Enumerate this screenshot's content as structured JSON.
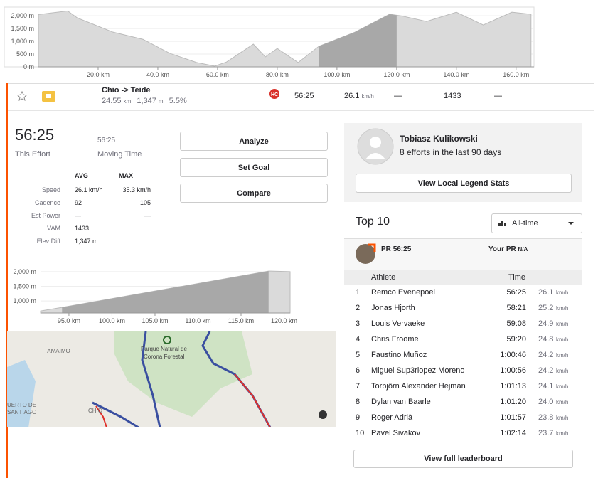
{
  "overview_chart": {
    "type": "area",
    "x": [
      0,
      9.8,
      13,
      25,
      35,
      44,
      53,
      59,
      63,
      72,
      76,
      80,
      87,
      94,
      106,
      117.6,
      121.5,
      130,
      140,
      149,
      158.6,
      165
    ],
    "values": [
      2050,
      2190,
      1920,
      1360,
      1080,
      530,
      170,
      30,
      190,
      890,
      390,
      720,
      170,
      810,
      1360,
      2060,
      2000,
      1780,
      2140,
      1640,
      2140,
      2060
    ],
    "xlim": [
      0,
      166
    ],
    "ylim": [
      0,
      2200
    ],
    "yticks": [
      {
        "value": 0,
        "label": "0 m"
      },
      {
        "value": 500,
        "label": "500 m"
      },
      {
        "value": 1000,
        "label": "1,000 m"
      },
      {
        "value": 1500,
        "label": "1,500 m"
      },
      {
        "value": 2000,
        "label": "2,000 m"
      }
    ],
    "xticks": [
      {
        "value": 20,
        "label": "20.0 km"
      },
      {
        "value": 40,
        "label": "40.0 km"
      },
      {
        "value": 60,
        "label": "60.0 km"
      },
      {
        "value": 80,
        "label": "80.0 km"
      },
      {
        "value": 100,
        "label": "100.0 km"
      },
      {
        "value": 120,
        "label": "120.0 km"
      },
      {
        "value": 140,
        "label": "140.0 km"
      },
      {
        "value": 160,
        "label": "160.0 km"
      }
    ],
    "highlight": [
      94,
      120
    ],
    "color": "#dadada",
    "highlight_color": "#a8a8a8"
  },
  "segment": {
    "name": "Chio -> Teide",
    "distance": "24.55",
    "distance_unit": "km",
    "elevation": "1,347",
    "elevation_unit": "m",
    "grade": "5.5%",
    "category": "HC",
    "time": "56:25",
    "speed": "26.1",
    "speed_unit": "km/h",
    "power": "—",
    "vam": "1433",
    "heart_rate": "—"
  },
  "effort": {
    "time": "56:25",
    "time_label": "This Effort",
    "moving_time": "56:25",
    "moving_label": "Moving Time",
    "headers": [
      "AVG",
      "MAX"
    ],
    "rows": [
      {
        "label": "Speed",
        "avg": "26.1 km/h",
        "max": "35.3 km/h"
      },
      {
        "label": "Cadence",
        "avg": "92",
        "max": "105"
      },
      {
        "label": "Est Power",
        "avg": "—",
        "max": "—"
      },
      {
        "label": "VAM",
        "avg": "1433"
      },
      {
        "label": "Elev Diff",
        "avg": "1,347 m"
      }
    ]
  },
  "buttons": [
    "Analyze",
    "Set Goal",
    "Compare"
  ],
  "segment_chart": {
    "type": "area",
    "x": [
      91.7,
      94.2,
      118.2,
      120.7
    ],
    "values": [
      660,
      780,
      2020,
      2000
    ],
    "xlim": [
      91.7,
      120.7
    ],
    "ylim": [
      590,
      2240
    ],
    "yticks": [
      {
        "value": 1000,
        "label": "1,000 m"
      },
      {
        "value": 1500,
        "label": "1,500 m"
      },
      {
        "value": 2000,
        "label": "2,000 m"
      }
    ],
    "xticks": [
      {
        "value": 95,
        "label": "95.0 km"
      },
      {
        "value": 100,
        "label": "100.0 km"
      },
      {
        "value": 105,
        "label": "105.0 km"
      },
      {
        "value": 110,
        "label": "110.0 km"
      },
      {
        "value": 115,
        "label": "115.0 km"
      },
      {
        "value": 120,
        "label": "120.0 km"
      }
    ],
    "highlight": [
      94.2,
      118.2
    ],
    "color": "#dadada",
    "highlight_color": "#a8a8a8"
  },
  "map": {
    "labels": [
      "TAMAIMO",
      "Parque Natural de",
      "Corona Forestal",
      "UERTO DE",
      "SANTIAGO",
      "CHIO"
    ]
  },
  "local_legend": {
    "name": "Tobiasz Kulikowski",
    "efforts": "8 efforts in the last 90 days",
    "button": "View Local Legend Stats"
  },
  "leaderboard": {
    "title": "Top 10",
    "filter": "All-time",
    "pr_label": "PR",
    "pr_time": "56:25",
    "your_pr_label": "Your PR",
    "your_pr": "N/A",
    "headers": [
      "Athlete",
      "Time"
    ],
    "rows": [
      {
        "rank": "1",
        "name": "Remco Evenepoel",
        "time": "56:25",
        "speed": "26.1",
        "unit": "km/h"
      },
      {
        "rank": "2",
        "name": "Jonas Hjorth",
        "time": "58:21",
        "speed": "25.2",
        "unit": "km/h"
      },
      {
        "rank": "3",
        "name": "Louis Vervaeke",
        "time": "59:08",
        "speed": "24.9",
        "unit": "km/h"
      },
      {
        "rank": "4",
        "name": "Chris Froome",
        "time": "59:20",
        "speed": "24.8",
        "unit": "km/h"
      },
      {
        "rank": "5",
        "name": "Faustino Muñoz",
        "time": "1:00:46",
        "speed": "24.2",
        "unit": "km/h"
      },
      {
        "rank": "6",
        "name": "Miguel Sup3rlopez Moreno",
        "time": "1:00:56",
        "speed": "24.2",
        "unit": "km/h"
      },
      {
        "rank": "7",
        "name": "Torbjörn Alexander Hejman",
        "time": "1:01:13",
        "speed": "24.1",
        "unit": "km/h"
      },
      {
        "rank": "8",
        "name": "Dylan van Baarle",
        "time": "1:01:20",
        "speed": "24.0",
        "unit": "km/h"
      },
      {
        "rank": "9",
        "name": "Roger Adrià",
        "time": "1:01:57",
        "speed": "23.8",
        "unit": "km/h"
      },
      {
        "rank": "10",
        "name": "Pavel Sivakov",
        "time": "1:02:14",
        "speed": "23.7",
        "unit": "km/h"
      }
    ],
    "button": "View full leaderboard"
  }
}
